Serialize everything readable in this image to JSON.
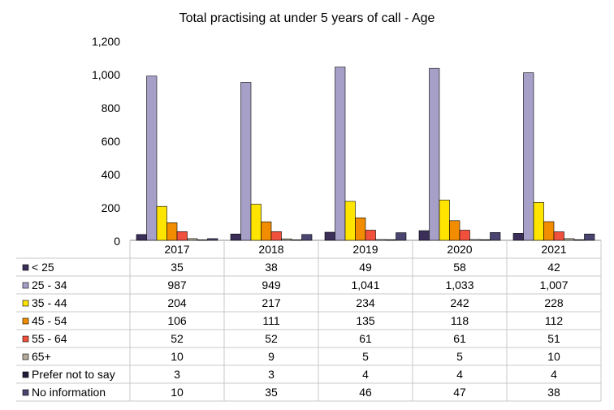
{
  "chart_data": {
    "type": "bar",
    "title": "Total practising at under 5 years of call - Age",
    "categories": [
      "2017",
      "2018",
      "2019",
      "2020",
      "2021"
    ],
    "ylim": [
      0,
      1200
    ],
    "yticks": [
      "0",
      "200",
      "400",
      "600",
      "800",
      "1,000",
      "1,200"
    ],
    "grid": false,
    "legend": "data-table-left",
    "series": [
      {
        "name": "< 25",
        "color": "#3b2f5a",
        "values": [
          35,
          38,
          49,
          58,
          42
        ],
        "labels": [
          "35",
          "38",
          "49",
          "58",
          "42"
        ]
      },
      {
        "name": "25 - 34",
        "color": "#a6a0c8",
        "values": [
          987,
          949,
          1041,
          1033,
          1007
        ],
        "labels": [
          "987",
          "949",
          "1,041",
          "1,033",
          "1,007"
        ]
      },
      {
        "name": "35 - 44",
        "color": "#ffe400",
        "values": [
          204,
          217,
          234,
          242,
          228
        ],
        "labels": [
          "204",
          "217",
          "234",
          "242",
          "228"
        ]
      },
      {
        "name": "45 - 54",
        "color": "#f28c00",
        "values": [
          106,
          111,
          135,
          118,
          112
        ],
        "labels": [
          "106",
          "111",
          "135",
          "118",
          "112"
        ]
      },
      {
        "name": "55 - 64",
        "color": "#f0503c",
        "values": [
          52,
          52,
          61,
          61,
          51
        ],
        "labels": [
          "52",
          "52",
          "61",
          "61",
          "51"
        ]
      },
      {
        "name": "65+",
        "color": "#b4ac98",
        "values": [
          10,
          9,
          5,
          5,
          10
        ],
        "labels": [
          "10",
          "9",
          "5",
          "5",
          "10"
        ]
      },
      {
        "name": "Prefer not to say",
        "color": "#231c3c",
        "values": [
          3,
          3,
          4,
          4,
          4
        ],
        "labels": [
          "3",
          "3",
          "4",
          "4",
          "4"
        ]
      },
      {
        "name": "No information",
        "color": "#4a4570",
        "values": [
          10,
          35,
          46,
          47,
          38
        ],
        "labels": [
          "10",
          "35",
          "46",
          "47",
          "38"
        ]
      }
    ]
  }
}
